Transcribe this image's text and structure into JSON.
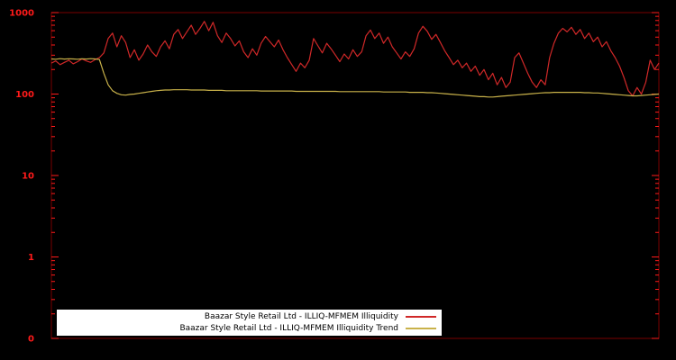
{
  "figure": {
    "background": "#000000",
    "border_color": "#7a0000",
    "tick_color": "#ff1a1a",
    "axis_label_color": "#ff1a1a"
  },
  "chart_data": {
    "type": "line",
    "title": "",
    "xlabel": "",
    "ylabel": "",
    "y_scale": "log",
    "ylim": [
      0.1,
      1000
    ],
    "grid": false,
    "legend_position": "bottom-left-inside",
    "y_ticks": [
      {
        "value": 1000,
        "label": "1000"
      },
      {
        "value": 100,
        "label": "100"
      },
      {
        "value": 10,
        "label": "10"
      },
      {
        "value": 1,
        "label": "1"
      },
      {
        "value": 0.1,
        "label": "0"
      }
    ],
    "series": [
      {
        "name": "Baazar Style Retail Ltd - ILLIQ-MFMEM Illiquidity",
        "color": "#d02828",
        "values": [
          240,
          255,
          230,
          245,
          260,
          235,
          250,
          270,
          255,
          245,
          265,
          280,
          320,
          480,
          560,
          380,
          520,
          430,
          280,
          350,
          260,
          310,
          400,
          330,
          290,
          380,
          450,
          360,
          540,
          620,
          480,
          580,
          700,
          540,
          640,
          780,
          600,
          760,
          520,
          430,
          560,
          480,
          390,
          450,
          330,
          280,
          360,
          300,
          420,
          510,
          440,
          380,
          460,
          350,
          280,
          230,
          190,
          240,
          210,
          260,
          480,
          390,
          320,
          420,
          360,
          300,
          250,
          310,
          270,
          350,
          290,
          330,
          520,
          610,
          480,
          560,
          420,
          500,
          380,
          320,
          270,
          330,
          290,
          360,
          560,
          680,
          590,
          470,
          540,
          430,
          340,
          280,
          230,
          260,
          210,
          240,
          190,
          220,
          170,
          200,
          150,
          180,
          130,
          160,
          120,
          140,
          280,
          320,
          240,
          180,
          140,
          120,
          150,
          130,
          280,
          420,
          560,
          640,
          580,
          660,
          540,
          620,
          480,
          560,
          440,
          500,
          380,
          440,
          340,
          280,
          220,
          160,
          110,
          95,
          120,
          100,
          140,
          260,
          200,
          240
        ]
      },
      {
        "name": "Baazar Style Retail Ltd - ILLIQ-MFMEM Illiquidity Trend",
        "color": "#c9b24a",
        "values": [
          270,
          268,
          272,
          269,
          271,
          270,
          268,
          271,
          269,
          272,
          270,
          265,
          180,
          130,
          110,
          102,
          98,
          97,
          99,
          100,
          102,
          104,
          106,
          108,
          110,
          111,
          112,
          112,
          113,
          113,
          113,
          113,
          112,
          112,
          112,
          112,
          111,
          111,
          111,
          111,
          110,
          110,
          110,
          110,
          110,
          110,
          110,
          110,
          109,
          109,
          109,
          109,
          109,
          109,
          109,
          109,
          108,
          108,
          108,
          108,
          108,
          108,
          108,
          108,
          108,
          108,
          107,
          107,
          107,
          107,
          107,
          107,
          107,
          107,
          107,
          107,
          106,
          106,
          106,
          106,
          106,
          106,
          105,
          105,
          105,
          105,
          104,
          104,
          103,
          102,
          101,
          100,
          99,
          98,
          97,
          96,
          95,
          94,
          93,
          93,
          92,
          92,
          93,
          94,
          95,
          96,
          97,
          98,
          99,
          100,
          101,
          102,
          103,
          104,
          104,
          105,
          105,
          105,
          105,
          105,
          105,
          105,
          104,
          104,
          103,
          103,
          102,
          101,
          100,
          99,
          98,
          97,
          96,
          95,
          95,
          96,
          97,
          98,
          99,
          100
        ]
      }
    ]
  }
}
